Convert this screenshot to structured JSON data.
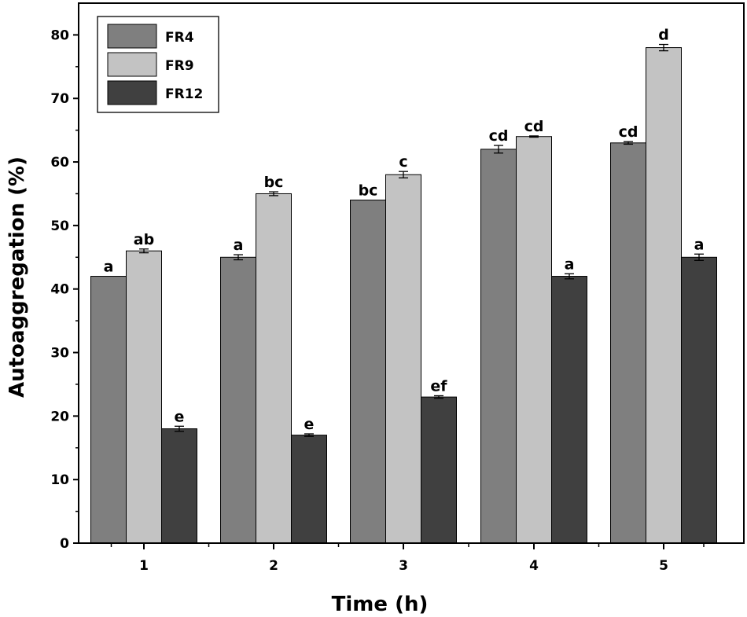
{
  "chart_data": {
    "type": "bar",
    "title": "",
    "xlabel": "Time (h)",
    "ylabel": "Autoaggregation (%)",
    "categories": [
      "1",
      "2",
      "3",
      "4",
      "5"
    ],
    "ylim": [
      0,
      85
    ],
    "yticks": [
      "0",
      "10",
      "20",
      "30",
      "40",
      "50",
      "60",
      "70",
      "80"
    ],
    "grid": false,
    "legend_position": "top-left",
    "series": [
      {
        "name": "FR4",
        "color": "#7f7f7f",
        "values": [
          42,
          45,
          54,
          62,
          63
        ],
        "errors": [
          0,
          0.4,
          0,
          0.6,
          0.2
        ],
        "letters": [
          "a",
          "a",
          "bc",
          "cd",
          "cd"
        ]
      },
      {
        "name": "FR9",
        "color": "#c3c3c3",
        "values": [
          46,
          55,
          58,
          64,
          78
        ],
        "errors": [
          0.3,
          0.3,
          0.5,
          0.1,
          0.5
        ],
        "letters": [
          "ab",
          "bc",
          "c",
          "cd",
          "d"
        ]
      },
      {
        "name": "FR12",
        "color": "#404040",
        "values": [
          18,
          17,
          23,
          42,
          45
        ],
        "errors": [
          0.4,
          0.2,
          0.2,
          0.4,
          0.5
        ],
        "letters": [
          "e",
          "e",
          "ef",
          "a",
          "a"
        ]
      }
    ]
  }
}
